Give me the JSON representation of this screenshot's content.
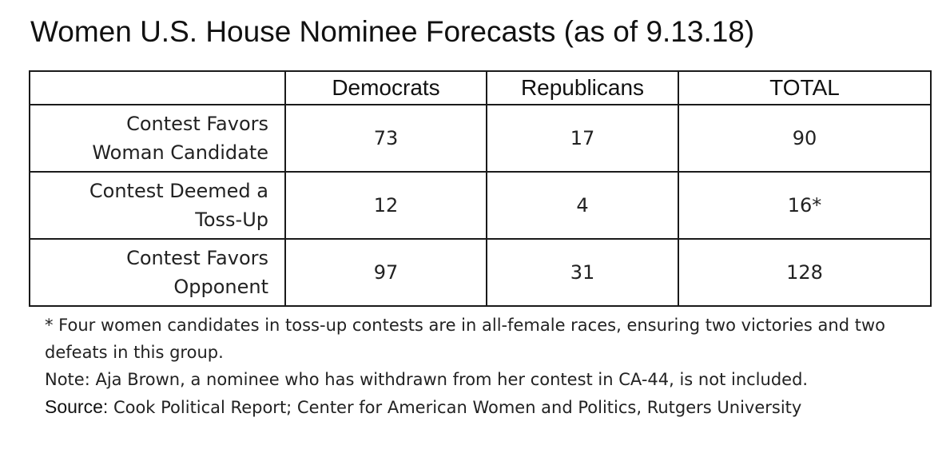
{
  "title": "Women U.S. House Nominee Forecasts (as of 9.13.18)",
  "chart_data": {
    "type": "table",
    "title": "Women U.S. House Nominee Forecasts (as of 9.13.18)",
    "columns": [
      "",
      "Democrats",
      "Republicans",
      "TOTAL"
    ],
    "rows": [
      {
        "label_line1": "Contest Favors",
        "label_line2": "Woman Candidate",
        "democrats": "73",
        "republicans": "17",
        "total": "90"
      },
      {
        "label_line1": "Contest Deemed a",
        "label_line2": "Toss-Up",
        "democrats": "12",
        "republicans": "4",
        "total": "16*"
      },
      {
        "label_line1": "Contest Favors",
        "label_line2": "Opponent",
        "democrats": "97",
        "republicans": "31",
        "total": "128"
      }
    ]
  },
  "notes": {
    "footnote": "* Four women candidates in toss-up contests are in all-female races, ensuring two victories and two defeats in this group.",
    "note": "Note: Aja Brown, a nominee who has withdrawn from her contest in CA-44, is not included.",
    "source_label": "Source:",
    "source_text": " Cook Political Report; Center for American Women and Politics, Rutgers University"
  }
}
